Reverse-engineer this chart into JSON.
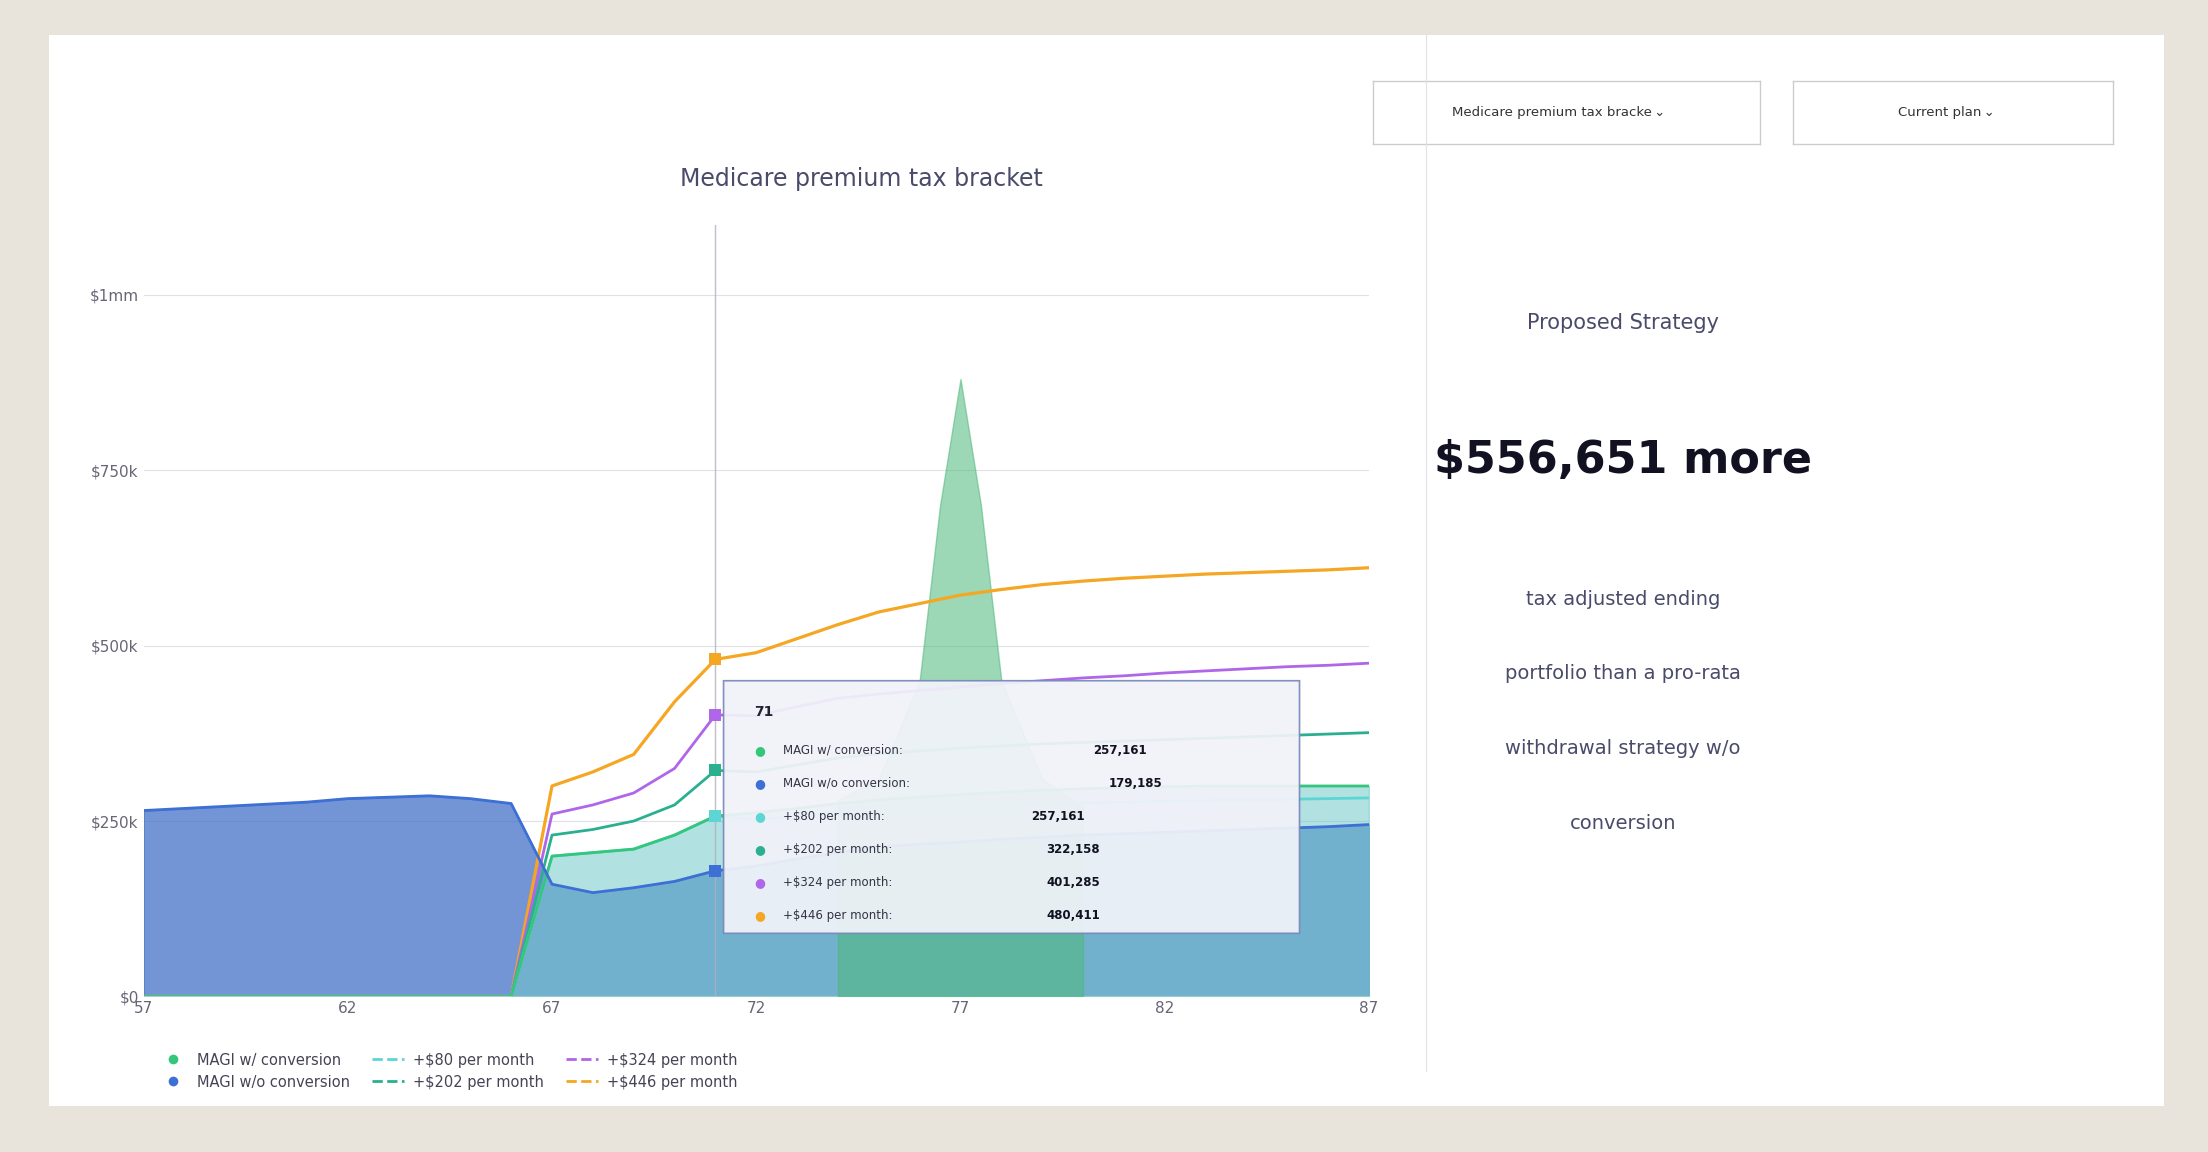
{
  "title": "Medicare premium tax bracket",
  "background_color": "#e8e3db",
  "chart_bg": "#ffffff",
  "x_min": 57,
  "x_max": 87,
  "y_min": 0,
  "y_max": 1100000,
  "yticks": [
    0,
    250000,
    500000,
    750000,
    1000000
  ],
  "ytick_labels": [
    "$0",
    "$250k",
    "$500k",
    "$750k",
    "$1mm"
  ],
  "xticks": [
    57,
    62,
    67,
    72,
    77,
    82,
    87
  ],
  "ages": [
    57,
    58,
    59,
    60,
    61,
    62,
    63,
    64,
    65,
    66,
    67,
    68,
    69,
    70,
    71,
    72,
    73,
    74,
    75,
    76,
    77,
    78,
    79,
    80,
    81,
    82,
    83,
    84,
    85,
    86,
    87
  ],
  "magi_without_conversion": [
    265000,
    268000,
    271000,
    274000,
    277000,
    282000,
    284000,
    286000,
    282000,
    275000,
    160000,
    148000,
    155000,
    164000,
    179185,
    186000,
    196000,
    205000,
    213000,
    217000,
    220000,
    224000,
    227000,
    230000,
    232000,
    234000,
    236000,
    238000,
    240000,
    242000,
    245000
  ],
  "magi_with_conversion": [
    0,
    0,
    0,
    0,
    0,
    0,
    0,
    0,
    0,
    0,
    200000,
    205000,
    210000,
    230000,
    257161,
    262000,
    268000,
    275000,
    280000,
    284000,
    288000,
    291000,
    294000,
    296000,
    298000,
    299000,
    300000,
    300000,
    300000,
    300000,
    300000
  ],
  "plus_80_per_month": [
    0,
    0,
    0,
    0,
    0,
    0,
    0,
    0,
    0,
    0,
    200000,
    205000,
    210000,
    230000,
    257161,
    252000,
    257000,
    262000,
    265000,
    267000,
    270000,
    272000,
    274000,
    276000,
    277000,
    278000,
    279000,
    280000,
    281000,
    282000,
    283000
  ],
  "plus_202_per_month": [
    0,
    0,
    0,
    0,
    0,
    0,
    0,
    0,
    0,
    0,
    230000,
    238000,
    250000,
    273000,
    322158,
    320000,
    330000,
    340000,
    346000,
    350000,
    354000,
    357000,
    360000,
    362000,
    364000,
    366000,
    368000,
    370000,
    372000,
    374000,
    376000
  ],
  "plus_324_per_month": [
    0,
    0,
    0,
    0,
    0,
    0,
    0,
    0,
    0,
    0,
    260000,
    273000,
    290000,
    325000,
    401285,
    400000,
    413000,
    425000,
    431000,
    436000,
    441000,
    446000,
    450000,
    454000,
    457000,
    461000,
    464000,
    467000,
    470000,
    472000,
    475000
  ],
  "plus_446_per_month": [
    0,
    0,
    0,
    0,
    0,
    0,
    0,
    0,
    0,
    0,
    300000,
    320000,
    345000,
    420000,
    480411,
    490000,
    510000,
    530000,
    548000,
    560000,
    572000,
    580000,
    587000,
    592000,
    596000,
    599000,
    602000,
    604000,
    606000,
    608000,
    611000
  ],
  "tooltip_age": "71",
  "tooltip_magi_conv": "257,161",
  "tooltip_magi_no_conv": "179,185",
  "tooltip_80": "257,161",
  "tooltip_202": "322,158",
  "tooltip_324": "401,285",
  "tooltip_446": "480,411",
  "colors": {
    "magi_with_conversion": "#34c77b",
    "magi_without_conversion": "#3d6fd4",
    "plus_80": "#5dd5d5",
    "plus_202": "#2ab090",
    "plus_324": "#b066e8",
    "plus_446": "#f5a623",
    "fill_without_conversion": "#4472c9",
    "fill_with_conversion": "#72c9c9"
  },
  "proposed_strategy_text": "Proposed Strategy",
  "proposed_amount": "$556,651 more",
  "proposed_desc_line1": "tax adjusted ending",
  "proposed_desc_line2": "portfolio than a pro-rata",
  "proposed_desc_line3": "withdrawal strategy w/o",
  "proposed_desc_line4": "conversion",
  "legend_items": [
    {
      "label": "MAGI w/ conversion",
      "color": "#34c77b",
      "type": "dot"
    },
    {
      "label": "MAGI w/o conversion",
      "color": "#3d6fd4",
      "type": "dot"
    },
    {
      "label": "+$80 per month",
      "color": "#5dd5d5",
      "type": "line"
    },
    {
      "label": "+$202 per month",
      "color": "#2ab090",
      "type": "line"
    },
    {
      "label": "+$324 per month",
      "color": "#b066e8",
      "type": "line"
    },
    {
      "label": "+$446 per month",
      "color": "#f5a623",
      "type": "line"
    }
  ]
}
